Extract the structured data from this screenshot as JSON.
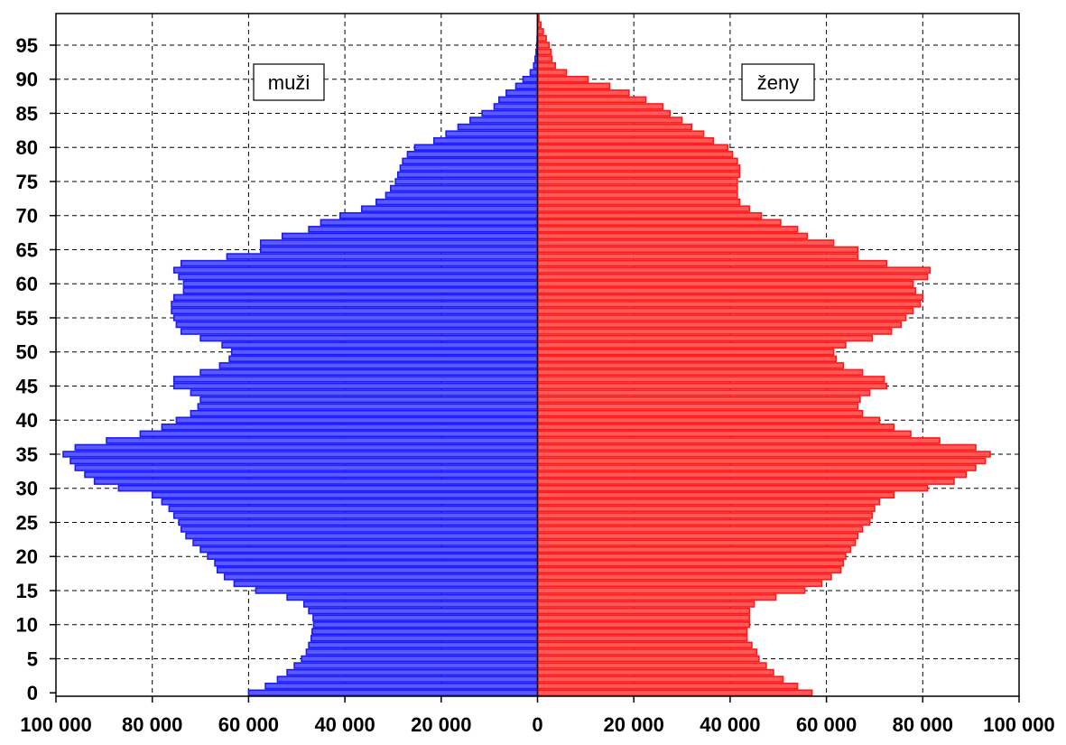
{
  "chart_data": {
    "type": "bar",
    "orientation": "horizontal",
    "subtype": "population-pyramid",
    "title": "",
    "xlabel": "",
    "ylabel": "",
    "xlim": [
      -100000,
      100000
    ],
    "ylim": [
      0,
      99
    ],
    "grid": true,
    "x_ticks": [
      "100 000",
      "80 000",
      "60 000",
      "40 000",
      "20 000",
      "0",
      "20 000",
      "40 000",
      "60 000",
      "80 000",
      "100 000"
    ],
    "y_ticks": [
      "0",
      "5",
      "10",
      "15",
      "20",
      "25",
      "30",
      "35",
      "40",
      "45",
      "50",
      "55",
      "60",
      "65",
      "70",
      "75",
      "80",
      "85",
      "90",
      "95"
    ],
    "ages": [
      0,
      1,
      2,
      3,
      4,
      5,
      6,
      7,
      8,
      9,
      10,
      11,
      12,
      13,
      14,
      15,
      16,
      17,
      18,
      19,
      20,
      21,
      22,
      23,
      24,
      25,
      26,
      27,
      28,
      29,
      30,
      31,
      32,
      33,
      34,
      35,
      36,
      37,
      38,
      39,
      40,
      41,
      42,
      43,
      44,
      45,
      46,
      47,
      48,
      49,
      50,
      51,
      52,
      53,
      54,
      55,
      56,
      57,
      58,
      59,
      60,
      61,
      62,
      63,
      64,
      65,
      66,
      67,
      68,
      69,
      70,
      71,
      72,
      73,
      74,
      75,
      76,
      77,
      78,
      79,
      80,
      81,
      82,
      83,
      84,
      85,
      86,
      87,
      88,
      89,
      90,
      91,
      92,
      93,
      94,
      95,
      96,
      97,
      98,
      99
    ],
    "series": [
      {
        "name": "muži",
        "color": "#3333ff",
        "values": [
          60000,
          56500,
          54000,
          52000,
          50500,
          49000,
          48000,
          47500,
          47000,
          46800,
          46500,
          46600,
          47500,
          48500,
          52000,
          58500,
          63000,
          65000,
          66500,
          67000,
          68500,
          70000,
          71500,
          73000,
          74000,
          74500,
          75500,
          76500,
          78000,
          80000,
          87000,
          92000,
          94000,
          96000,
          97000,
          98500,
          96000,
          89500,
          82500,
          78000,
          75000,
          72000,
          70500,
          70000,
          72000,
          75500,
          75500,
          70000,
          66000,
          64000,
          63500,
          65500,
          70000,
          74000,
          75000,
          75500,
          76000,
          76000,
          75500,
          73500,
          73500,
          74500,
          75500,
          74000,
          64500,
          57500,
          57500,
          53000,
          47500,
          45000,
          41000,
          36500,
          33500,
          31500,
          30500,
          29500,
          29000,
          28500,
          28000,
          27000,
          25500,
          21500,
          19000,
          16500,
          14000,
          11500,
          9000,
          8000,
          6500,
          4500,
          3000,
          1500,
          800,
          500,
          300,
          150,
          80,
          40,
          20,
          10
        ]
      },
      {
        "name": "ženy",
        "color": "#ff3333",
        "values": [
          57000,
          54000,
          51000,
          49000,
          47500,
          46000,
          45500,
          44500,
          43500,
          43500,
          44000,
          44000,
          44000,
          45000,
          49500,
          55500,
          59000,
          61000,
          63000,
          63500,
          64000,
          65000,
          66000,
          66500,
          67500,
          69000,
          69500,
          70000,
          71000,
          74000,
          81000,
          86500,
          89000,
          91000,
          93000,
          94000,
          91000,
          83500,
          77500,
          74000,
          71000,
          67500,
          66500,
          67000,
          69000,
          72500,
          72000,
          67500,
          63500,
          62000,
          61500,
          64000,
          69500,
          73500,
          75500,
          76500,
          78000,
          79500,
          80000,
          78500,
          78000,
          81000,
          81500,
          72500,
          66500,
          66500,
          61500,
          56000,
          54000,
          50500,
          46500,
          44000,
          42000,
          41500,
          41500,
          41500,
          42000,
          42000,
          41500,
          40500,
          39500,
          36500,
          34500,
          32000,
          30000,
          27500,
          26000,
          22500,
          19000,
          15000,
          10500,
          6000,
          3700,
          3000,
          2800,
          2400,
          1800,
          1200,
          700,
          300
        ]
      }
    ],
    "annotations": [
      "muži",
      "ženy"
    ]
  }
}
